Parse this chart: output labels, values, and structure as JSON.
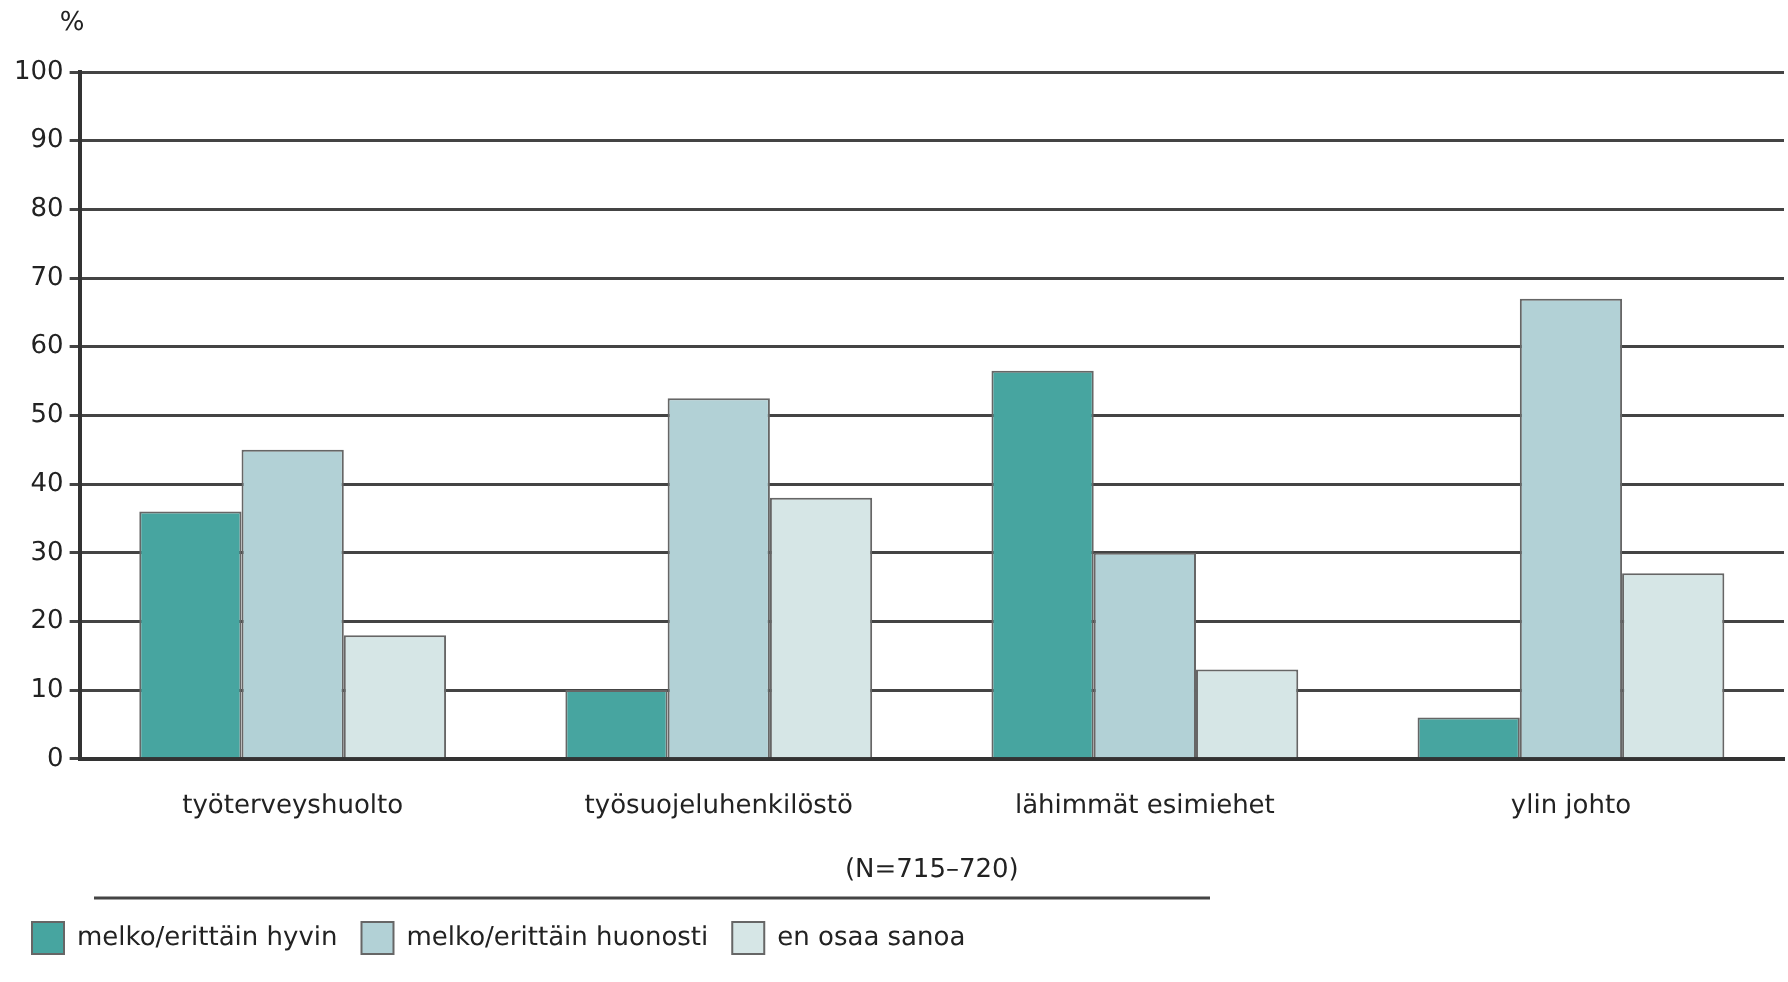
{
  "chart_data": {
    "type": "bar",
    "ylabel": "%",
    "categories": [
      "työterveyshuolto",
      "työsuojeluhenkilöstö",
      "lähimmät esimiehet",
      "ylin johto"
    ],
    "series": [
      {
        "name": "melko/erittäin hyvin",
        "color": "#47a5a0",
        "values": [
          36,
          10,
          56.5,
          6
        ]
      },
      {
        "name": "melko/erittäin huonosti",
        "color": "#b2d1d6",
        "values": [
          45,
          52.5,
          30,
          67
        ]
      },
      {
        "name": "en osaa sanoa",
        "color": "#d6e6e6",
        "values": [
          18,
          38,
          13,
          27
        ]
      }
    ],
    "ylim": [
      0,
      100
    ],
    "yticks": [
      0,
      10,
      20,
      30,
      40,
      50,
      60,
      70,
      80,
      90,
      100
    ],
    "grid": "y",
    "legend": "bottom left",
    "annotations": [
      "(N=715–720)"
    ]
  }
}
